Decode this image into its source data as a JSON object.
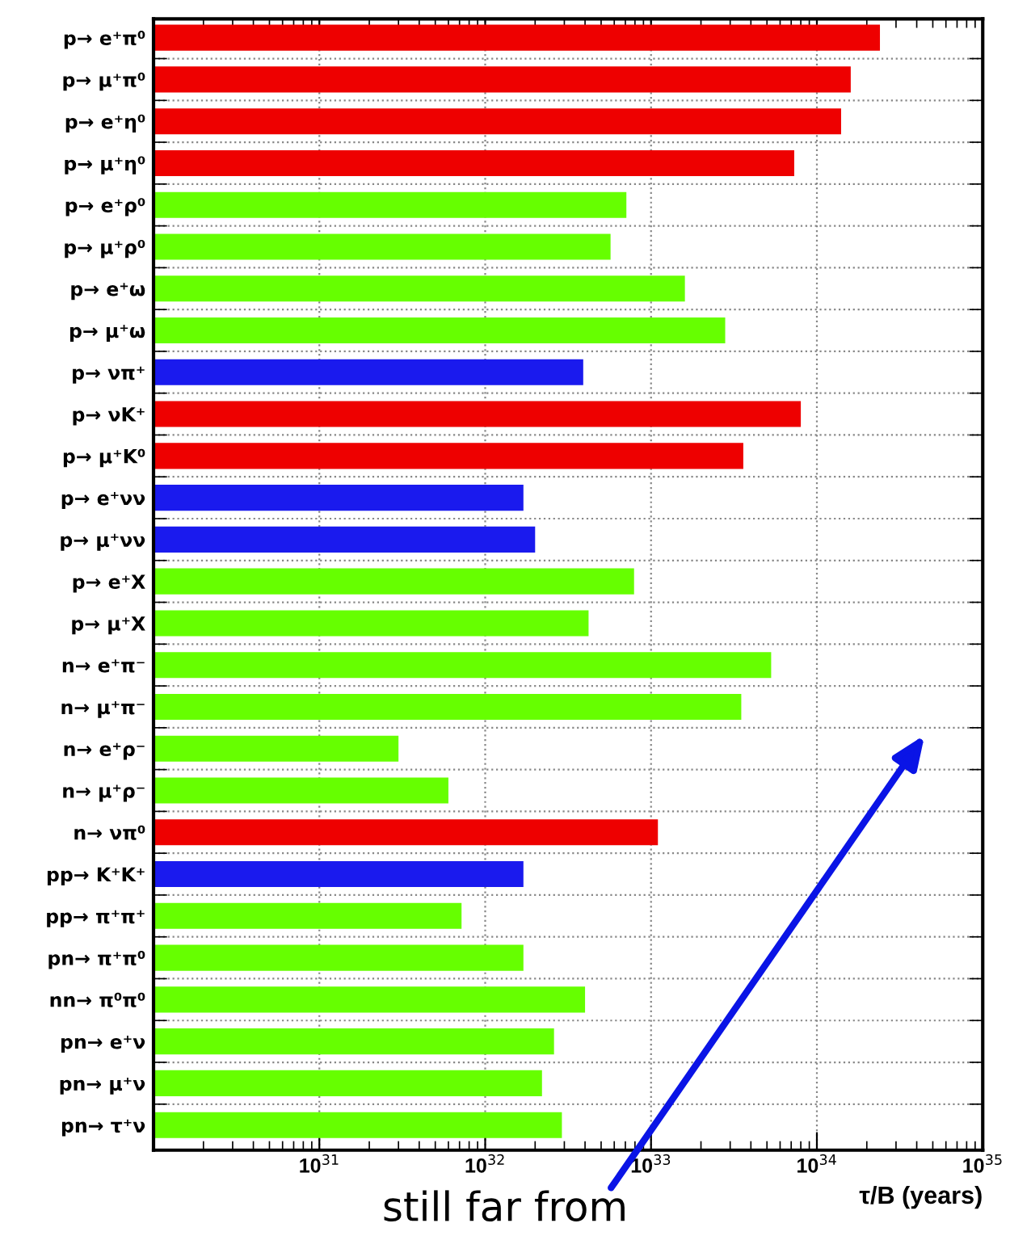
{
  "chart_data": {
    "type": "bar",
    "orientation": "horizontal",
    "log": "x",
    "grid": true,
    "categories": [
      "p→ e⁺π⁰",
      "p→ μ⁺π⁰",
      "p→ e⁺η⁰",
      "p→ μ⁺η⁰",
      "p→ e⁺ρ⁰",
      "p→ μ⁺ρ⁰",
      "p→ e⁺ω",
      "p→ μ⁺ω",
      "p→ νπ⁺",
      "p→ νK⁺",
      "p→ μ⁺K⁰",
      "p→ e⁺νν",
      "p→ μ⁺νν",
      "p→ e⁺X",
      "p→ μ⁺X",
      "n→ e⁺π⁻",
      "n→ μ⁺π⁻",
      "n→ e⁺ρ⁻",
      "n→ μ⁺ρ⁻",
      "n→ νπ⁰",
      "pp→ K⁺K⁺",
      "pp→ π⁺π⁺",
      "pn→ π⁺π⁰",
      "nn→ π⁰π⁰",
      "pn→ e⁺ν",
      "pn→ μ⁺ν",
      "pn→ τ⁺ν"
    ],
    "values": [
      2.4e+34,
      1.6e+34,
      1.4e+34,
      7.3e+33,
      7.1e+32,
      5.7e+32,
      1.6e+33,
      2.8e+33,
      3.9e+32,
      8e+33,
      3.6e+33,
      1.7e+32,
      2e+32,
      7.9e+32,
      4.2e+32,
      5.3e+33,
      3.5e+33,
      3e+31,
      6e+31,
      1.1e+33,
      1.7e+32,
      7.2e+31,
      1.7e+32,
      4e+32,
      2.6e+32,
      2.2e+32,
      2.9e+32
    ],
    "colors": [
      "#ee0000",
      "#ee0000",
      "#ee0000",
      "#ee0000",
      "#66ff00",
      "#66ff00",
      "#66ff00",
      "#66ff00",
      "#1a1aee",
      "#ee0000",
      "#ee0000",
      "#1a1aee",
      "#1a1aee",
      "#66ff00",
      "#66ff00",
      "#66ff00",
      "#66ff00",
      "#66ff00",
      "#66ff00",
      "#ee0000",
      "#1a1aee",
      "#66ff00",
      "#66ff00",
      "#66ff00",
      "#66ff00",
      "#66ff00",
      "#66ff00"
    ],
    "xlim": [
      1e+30,
      1e+35
    ],
    "xticks": [
      {
        "value": 1e+31,
        "label": "10$^{31}$"
      },
      {
        "value": 1e+32,
        "label": "10$^{32}$"
      },
      {
        "value": 1e+33,
        "label": "10$^{33}$"
      },
      {
        "value": 1e+34,
        "label": "10$^{34}$"
      },
      {
        "value": 1e+35,
        "label": "10$^{35}$"
      }
    ],
    "xlabel": "τ/B (years)",
    "annotations": [
      "still far from"
    ]
  }
}
